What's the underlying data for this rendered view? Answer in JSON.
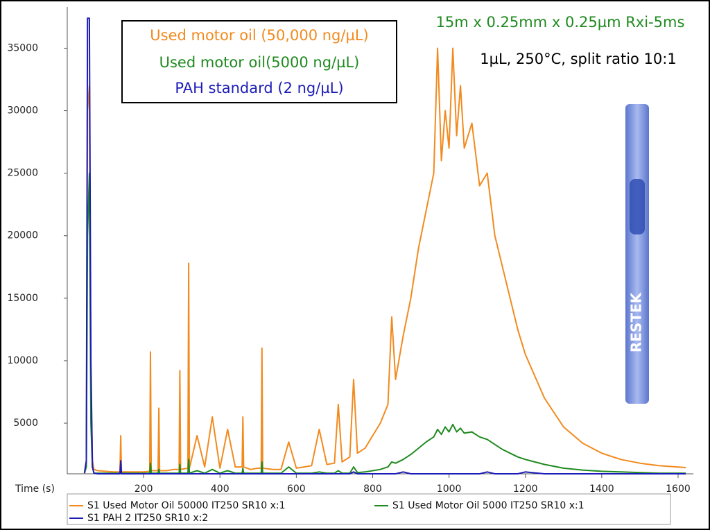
{
  "chart_data": {
    "type": "line",
    "xlabel": "Time (s)",
    "xlim": [
      0,
      1640
    ],
    "ylim": [
      950,
      38300
    ],
    "xticks": [
      200,
      400,
      600,
      800,
      1000,
      1200,
      1400,
      1600
    ],
    "yticks": [
      5000,
      10000,
      15000,
      20000,
      25000,
      30000,
      35000
    ],
    "legend": "bottom",
    "x": [
      45,
      50,
      53,
      58,
      62,
      66,
      70,
      80,
      100,
      120,
      138,
      140,
      142,
      160,
      180,
      200,
      216,
      218,
      220,
      238,
      240,
      242,
      260,
      280,
      293,
      295,
      297,
      316,
      318,
      320,
      340,
      360,
      380,
      400,
      420,
      440,
      458,
      460,
      462,
      480,
      500,
      508,
      510,
      512,
      540,
      560,
      580,
      600,
      620,
      640,
      660,
      680,
      700,
      710,
      720,
      740,
      750,
      760,
      780,
      800,
      820,
      840,
      850,
      860,
      880,
      900,
      920,
      940,
      960,
      970,
      980,
      990,
      1000,
      1010,
      1020,
      1030,
      1040,
      1060,
      1080,
      1100,
      1120,
      1140,
      1160,
      1180,
      1200,
      1250,
      1300,
      1350,
      1400,
      1450,
      1500,
      1550,
      1620
    ],
    "series": [
      {
        "name": "S1 Used Motor Oil 50000 IT250 SR10 x:1",
        "color": "#f28a1e",
        "values": [
          1000,
          2000,
          30000,
          32000,
          8000,
          2000,
          1300,
          1200,
          1150,
          1100,
          1100,
          4000,
          1100,
          1100,
          1100,
          1100,
          1150,
          10700,
          1200,
          1200,
          6200,
          1200,
          1200,
          1300,
          1300,
          9200,
          1300,
          1400,
          17800,
          1400,
          4000,
          1500,
          5500,
          1400,
          4500,
          1500,
          1500,
          5500,
          1500,
          1300,
          1400,
          1400,
          11000,
          1400,
          1300,
          1300,
          3500,
          1400,
          1500,
          1600,
          4500,
          1700,
          1800,
          6500,
          1900,
          2300,
          8500,
          2600,
          3000,
          4000,
          5000,
          6500,
          13500,
          8500,
          12000,
          15000,
          19000,
          22000,
          25000,
          35000,
          26000,
          30000,
          27000,
          35000,
          28000,
          32000,
          27000,
          29000,
          24000,
          25000,
          20000,
          17500,
          15000,
          12500,
          10500,
          7000,
          4700,
          3400,
          2600,
          2100,
          1800,
          1600,
          1450
        ]
      },
      {
        "name": "S1 Used Motor Oil 5000 IT250 SR10 x:1",
        "color": "#1f8a1f",
        "values": [
          1000,
          1500,
          20000,
          25000,
          5000,
          1500,
          1000,
          1000,
          1000,
          1000,
          1000,
          1200,
          1000,
          1000,
          1000,
          1000,
          1000,
          1800,
          1000,
          1000,
          1300,
          1000,
          1000,
          1000,
          1000,
          1700,
          1000,
          1000,
          2100,
          1000,
          1200,
          1000,
          1300,
          1000,
          1200,
          1000,
          1000,
          1400,
          1000,
          1000,
          1000,
          1000,
          1900,
          1000,
          1000,
          1000,
          1500,
          1000,
          1000,
          1000,
          1100,
          1000,
          1000,
          1200,
          1000,
          1000,
          1500,
          1050,
          1100,
          1200,
          1300,
          1500,
          1900,
          1800,
          2100,
          2500,
          3000,
          3500,
          3900,
          4500,
          4100,
          4700,
          4300,
          4900,
          4300,
          4600,
          4200,
          4300,
          3900,
          3700,
          3300,
          2900,
          2600,
          2300,
          2100,
          1700,
          1400,
          1250,
          1150,
          1100,
          1050,
          1000,
          1000
        ]
      },
      {
        "name": "S1 PAH 2 IT250 SR10 x:2",
        "color": "#1c1cb8",
        "values": [
          1000,
          2000,
          37400,
          37400,
          10000,
          1500,
          1000,
          950,
          950,
          950,
          950,
          2000,
          950,
          950,
          950,
          950,
          950,
          950,
          950,
          950,
          950,
          950,
          950,
          950,
          950,
          950,
          950,
          950,
          950,
          950,
          950,
          950,
          950,
          950,
          950,
          950,
          950,
          950,
          950,
          950,
          950,
          950,
          950,
          950,
          950,
          950,
          950,
          950,
          950,
          950,
          950,
          950,
          950,
          950,
          950,
          950,
          1100,
          950,
          950,
          950,
          950,
          950,
          950,
          950,
          1100,
          950,
          950,
          950,
          950,
          950,
          950,
          950,
          950,
          950,
          950,
          950,
          950,
          950,
          950,
          1100,
          950,
          950,
          950,
          950,
          1100,
          950,
          950,
          950,
          950,
          950,
          950,
          950,
          950
        ]
      }
    ],
    "annotations": [
      {
        "text": "Used motor oil (50,000 ng/µL)",
        "color": "#f28a1e"
      },
      {
        "text": "Used motor oil(5000 ng/µL)",
        "color": "#1f8a1f"
      },
      {
        "text": "PAH standard (2 ng/µL)",
        "color": "#1c1cb8"
      },
      {
        "text": "15m x 0.25mm x 0.25µm Rxi-5ms",
        "color": "#1f8a1f"
      },
      {
        "text": "1µL, 250°C, split ratio 10:1",
        "color": "#000000"
      }
    ],
    "image_label": "RESTEK"
  }
}
